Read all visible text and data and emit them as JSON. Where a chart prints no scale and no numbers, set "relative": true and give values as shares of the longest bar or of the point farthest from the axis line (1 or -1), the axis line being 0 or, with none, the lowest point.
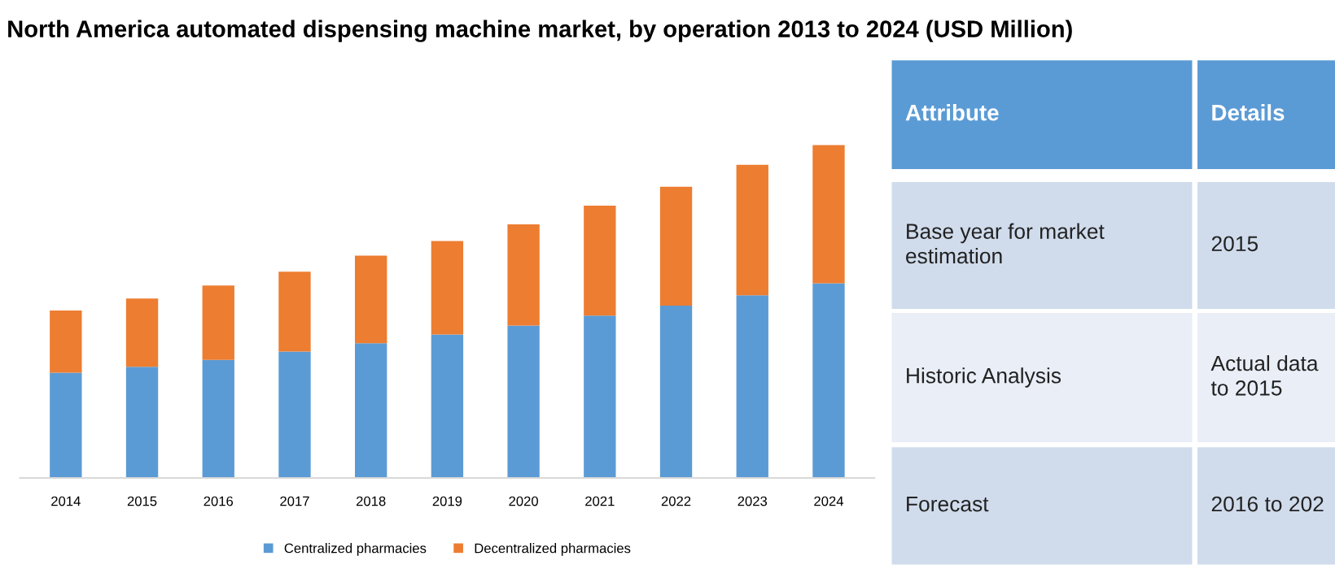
{
  "chart_data": [
    {
      "type": "bar",
      "title": "North America automated dispensing machine market, by operation 2013 to 2024 (USD Million)",
      "relative": true,
      "stacked": true,
      "legend": "bottom",
      "categories": [
        "2014",
        "2015",
        "2016",
        "2017",
        "2018",
        "2019",
        "2020",
        "2021",
        "2022",
        "2023",
        "2024"
      ],
      "series": [
        {
          "name": "Centralized pharmacies",
          "color": "#5b9bd5",
          "values": [
            0.316,
            0.334,
            0.355,
            0.38,
            0.405,
            0.431,
            0.458,
            0.488,
            0.518,
            0.549,
            0.585
          ]
        },
        {
          "name": "Decentralized pharmacies",
          "color": "#ed7d31",
          "values": [
            0.187,
            0.205,
            0.223,
            0.24,
            0.263,
            0.281,
            0.304,
            0.33,
            0.357,
            0.392,
            0.415
          ]
        }
      ]
    },
    {
      "type": "other",
      "annotations": [
        "Attribute",
        "Details",
        "Base year for market\nestimation",
        "2015",
        "Historic Analysis",
        "Actual data\nto 2015",
        "Forecast",
        "2016 to 202"
      ]
    }
  ]
}
